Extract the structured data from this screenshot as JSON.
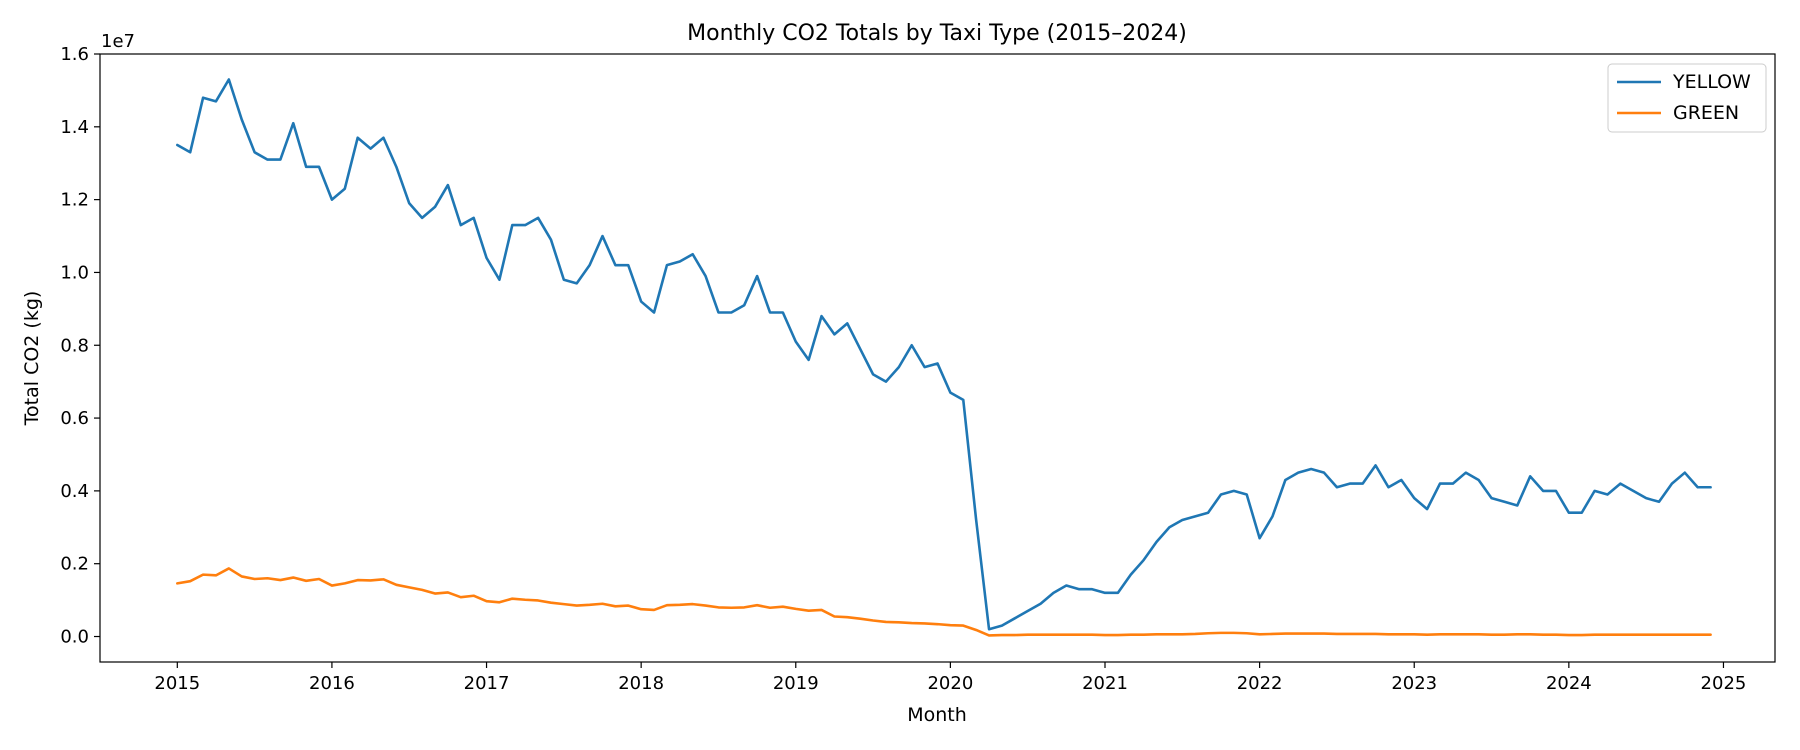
{
  "chart_data": {
    "type": "line",
    "title": "Monthly CO2 Totals by Taxi Type (2015–2024)",
    "xlabel": "Month",
    "ylabel": "Total CO2 (kg)",
    "y_offset_label": "1e7",
    "x_ticks": [
      "2015",
      "2016",
      "2017",
      "2018",
      "2019",
      "2020",
      "2021",
      "2022",
      "2023",
      "2024",
      "2025"
    ],
    "y_ticks": [
      "0.0",
      "0.2",
      "0.4",
      "0.6",
      "0.8",
      "1.0",
      "1.2",
      "1.4",
      "1.6"
    ],
    "xlim": [
      "2014-07",
      "2025-05"
    ],
    "ylim": [
      -0.07,
      1.6
    ],
    "y_unit_multiplier": 10000000,
    "grid": false,
    "legend_position": "top-right",
    "series": [
      {
        "name": "YELLOW",
        "color": "#1f77b4",
        "values": [
          1.35,
          1.33,
          1.48,
          1.47,
          1.53,
          1.42,
          1.33,
          1.31,
          1.31,
          1.41,
          1.29,
          1.29,
          1.2,
          1.23,
          1.37,
          1.34,
          1.37,
          1.29,
          1.19,
          1.15,
          1.18,
          1.24,
          1.13,
          1.15,
          1.04,
          0.98,
          1.13,
          1.13,
          1.15,
          1.09,
          0.98,
          0.97,
          1.02,
          1.1,
          1.02,
          1.02,
          0.92,
          0.89,
          1.02,
          1.03,
          1.05,
          0.99,
          0.89,
          0.89,
          0.91,
          0.99,
          0.89,
          0.89,
          0.81,
          0.76,
          0.88,
          0.83,
          0.86,
          0.79,
          0.72,
          0.7,
          0.74,
          0.8,
          0.74,
          0.75,
          0.67,
          0.65,
          0.32,
          0.02,
          0.03,
          0.05,
          0.07,
          0.09,
          0.12,
          0.14,
          0.13,
          0.13,
          0.12,
          0.12,
          0.17,
          0.21,
          0.26,
          0.3,
          0.32,
          0.33,
          0.34,
          0.39,
          0.4,
          0.39,
          0.27,
          0.33,
          0.43,
          0.45,
          0.46,
          0.45,
          0.41,
          0.42,
          0.42,
          0.47,
          0.41,
          0.43,
          0.38,
          0.35,
          0.42,
          0.42,
          0.45,
          0.43,
          0.38,
          0.37,
          0.36,
          0.44,
          0.4,
          0.4,
          0.34,
          0.34,
          0.4,
          0.39,
          0.42,
          0.4,
          0.38,
          0.37,
          0.42,
          0.45,
          0.41,
          0.41
        ]
      },
      {
        "name": "GREEN",
        "color": "#ff7f0e",
        "values": [
          0.146,
          0.152,
          0.17,
          0.168,
          0.187,
          0.165,
          0.158,
          0.16,
          0.155,
          0.162,
          0.153,
          0.158,
          0.14,
          0.146,
          0.155,
          0.154,
          0.157,
          0.142,
          0.135,
          0.128,
          0.118,
          0.121,
          0.108,
          0.112,
          0.097,
          0.094,
          0.104,
          0.101,
          0.099,
          0.093,
          0.089,
          0.085,
          0.087,
          0.09,
          0.083,
          0.085,
          0.075,
          0.073,
          0.086,
          0.087,
          0.089,
          0.085,
          0.08,
          0.079,
          0.08,
          0.086,
          0.079,
          0.082,
          0.076,
          0.071,
          0.073,
          0.055,
          0.053,
          0.049,
          0.044,
          0.04,
          0.039,
          0.037,
          0.036,
          0.034,
          0.031,
          0.03,
          0.018,
          0.003,
          0.004,
          0.004,
          0.005,
          0.005,
          0.005,
          0.005,
          0.005,
          0.005,
          0.004,
          0.004,
          0.005,
          0.005,
          0.006,
          0.006,
          0.006,
          0.007,
          0.009,
          0.01,
          0.01,
          0.009,
          0.006,
          0.007,
          0.008,
          0.008,
          0.008,
          0.008,
          0.007,
          0.007,
          0.007,
          0.007,
          0.006,
          0.006,
          0.006,
          0.005,
          0.006,
          0.006,
          0.006,
          0.006,
          0.005,
          0.005,
          0.006,
          0.006,
          0.005,
          0.005,
          0.004,
          0.004,
          0.005,
          0.005,
          0.005,
          0.005,
          0.005,
          0.005,
          0.005,
          0.005,
          0.005,
          0.005
        ]
      }
    ],
    "x_start": "2015-01",
    "x_step": "month"
  }
}
